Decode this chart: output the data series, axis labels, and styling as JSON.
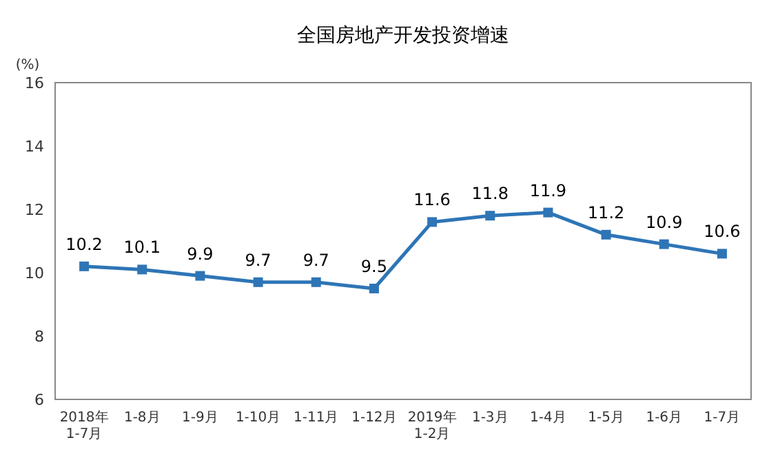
{
  "chart_data": {
    "type": "line",
    "title": "全国房地产开发投资增速",
    "ylabel": "(%)",
    "categories": [
      "2018年\n1-7月",
      "1-8月",
      "1-9月",
      "1-10月",
      "1-11月",
      "1-12月",
      "2019年\n1-2月",
      "1-3月",
      "1-4月",
      "1-5月",
      "1-6月",
      "1-7月"
    ],
    "series": [
      {
        "color": "#2e75b6",
        "values": [
          10.2,
          10.1,
          9.9,
          9.7,
          9.7,
          9.5,
          11.6,
          11.8,
          11.9,
          11.2,
          10.9,
          10.6
        ]
      }
    ],
    "ylim": [
      6,
      16
    ],
    "yticks": [
      6,
      8,
      10,
      12,
      14,
      16
    ],
    "marker": "square",
    "data_labels": true
  }
}
